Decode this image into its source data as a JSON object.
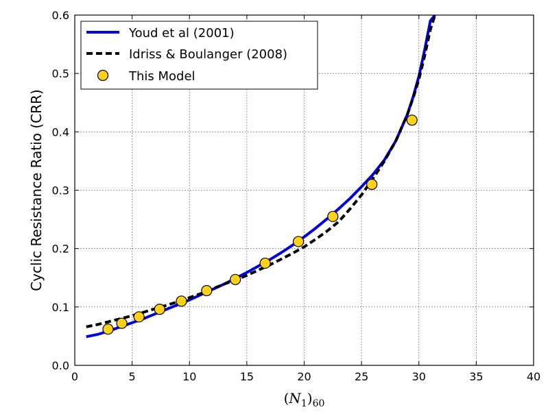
{
  "chart_data": {
    "type": "line",
    "xlabel": "(N1)60",
    "ylabel": "Cyclic Resistance Ratio (CRR)",
    "xlim": [
      0,
      40
    ],
    "ylim": [
      0,
      0.6
    ],
    "xticks": [
      0,
      5,
      10,
      15,
      20,
      25,
      30,
      35,
      40
    ],
    "yticks": [
      0.0,
      0.1,
      0.2,
      0.3,
      0.4,
      0.5,
      0.6
    ],
    "x_tick_labels": [
      "0",
      "5",
      "10",
      "15",
      "20",
      "25",
      "30",
      "35",
      "40"
    ],
    "y_tick_labels": [
      "0.0",
      "0.1",
      "0.2",
      "0.3",
      "0.4",
      "0.5",
      "0.6"
    ],
    "grid": true,
    "legend_position": "top-left",
    "series": [
      {
        "name": "Youd et al (2001)",
        "kind": "line",
        "color": "#0000dd",
        "style": "solid",
        "x": [
          1,
          2,
          3,
          4,
          5,
          6,
          7,
          8,
          9,
          10,
          11,
          12,
          13,
          14,
          15,
          16,
          17,
          18,
          19,
          20,
          21,
          22,
          23,
          24,
          25,
          26,
          27,
          28,
          29,
          29.5,
          30,
          30.5,
          31,
          31.4
        ],
        "y": [
          0.049,
          0.053,
          0.059,
          0.066,
          0.073,
          0.08,
          0.088,
          0.096,
          0.104,
          0.112,
          0.121,
          0.13,
          0.139,
          0.149,
          0.159,
          0.17,
          0.181,
          0.193,
          0.206,
          0.22,
          0.235,
          0.251,
          0.268,
          0.286,
          0.306,
          0.327,
          0.352,
          0.385,
          0.43,
          0.46,
          0.495,
          0.54,
          0.59,
          0.6
        ]
      },
      {
        "name": "Idriss & Boulanger (2008)",
        "kind": "line",
        "color": "#000000",
        "style": "dashed",
        "x": [
          1,
          2,
          3,
          4,
          5,
          6,
          7,
          8,
          9,
          10,
          11,
          12,
          13,
          14,
          15,
          16,
          17,
          18,
          19,
          20,
          21,
          22,
          23,
          24,
          25,
          26,
          27,
          28,
          29,
          29.5,
          30,
          30.5,
          31,
          31.4
        ],
        "y": [
          0.066,
          0.07,
          0.075,
          0.08,
          0.085,
          0.091,
          0.097,
          0.103,
          0.109,
          0.116,
          0.123,
          0.131,
          0.139,
          0.146,
          0.154,
          0.163,
          0.172,
          0.182,
          0.192,
          0.203,
          0.216,
          0.23,
          0.246,
          0.268,
          0.292,
          0.32,
          0.35,
          0.385,
          0.43,
          0.458,
          0.49,
          0.53,
          0.575,
          0.6
        ]
      },
      {
        "name": "This Model",
        "kind": "scatter",
        "color": "#ffd11a",
        "edgecolor": "#000000",
        "x": [
          2.9,
          4.1,
          5.6,
          7.4,
          9.3,
          11.5,
          14.0,
          16.6,
          19.5,
          22.5,
          25.9,
          29.4
        ],
        "y": [
          0.062,
          0.072,
          0.083,
          0.096,
          0.11,
          0.128,
          0.147,
          0.175,
          0.212,
          0.255,
          0.31,
          0.42
        ]
      }
    ]
  }
}
